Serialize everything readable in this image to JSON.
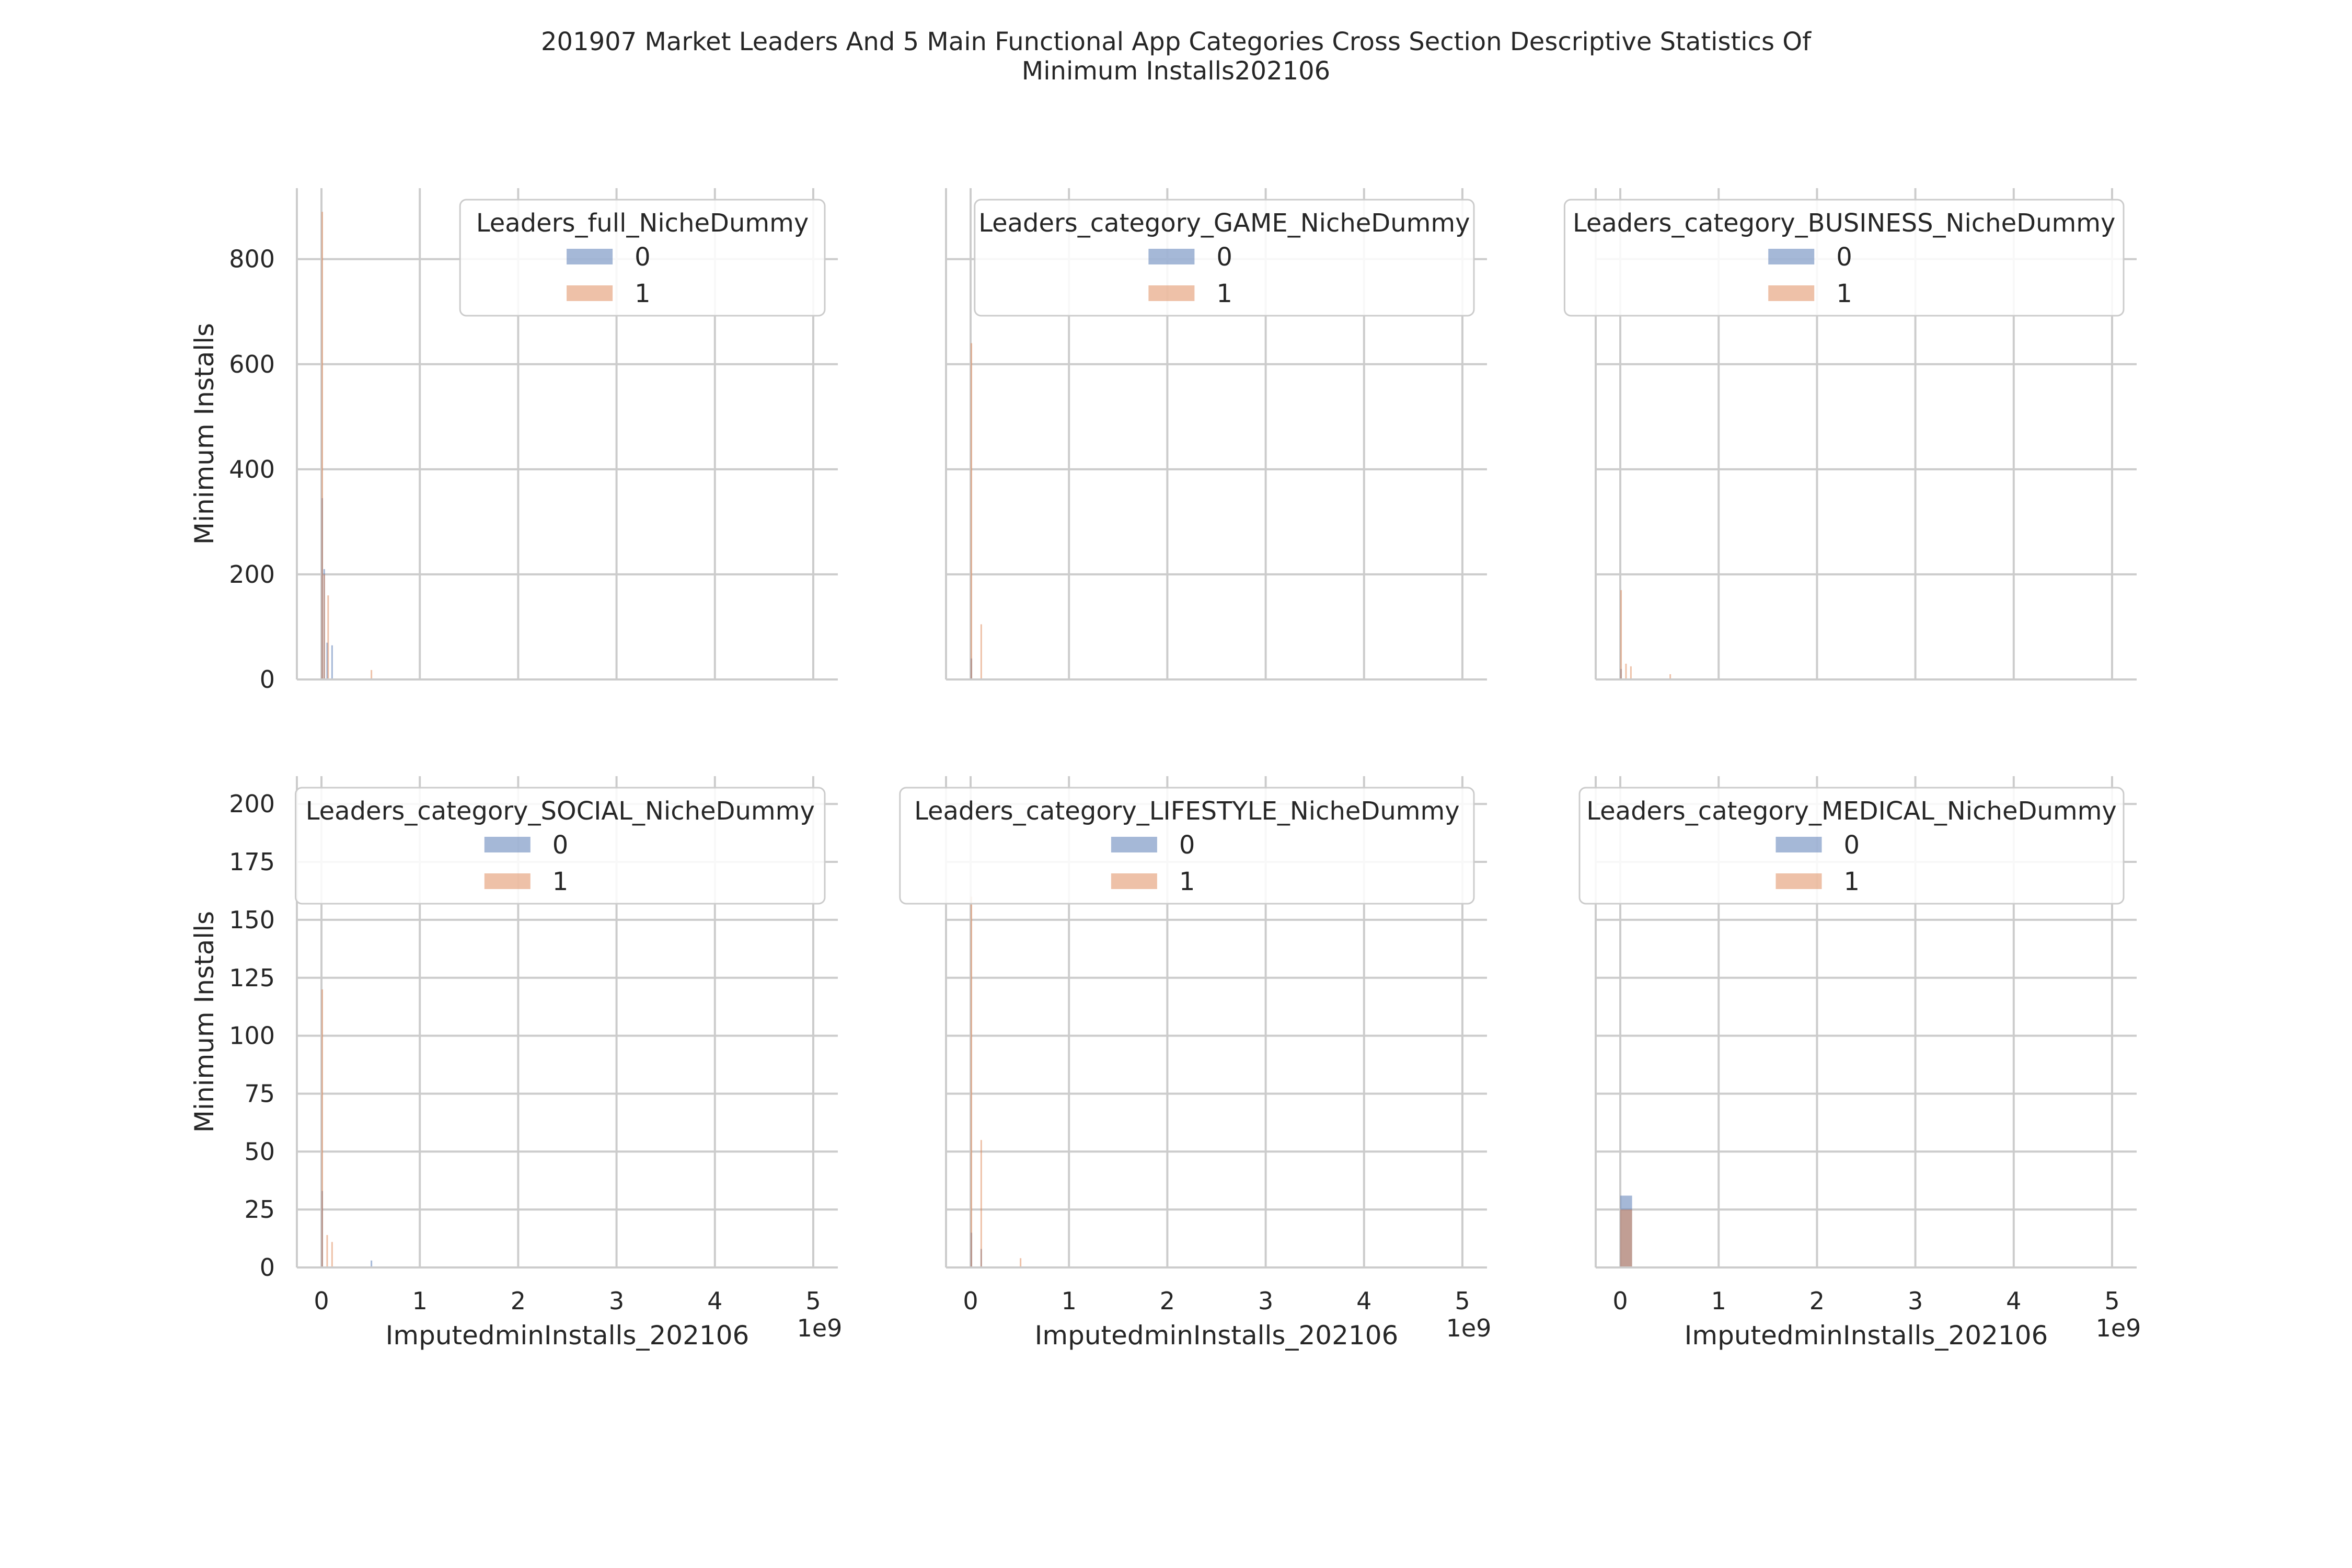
{
  "figure": {
    "title_line1": "201907 Market Leaders And 5 Main Functional App Categories Cross Section Descriptive Statistics Of",
    "title_line2": "Minimum Installs202106"
  },
  "colors": {
    "series_0": "#4c72b0",
    "series_1": "#dd8452",
    "grid": "#cccccc",
    "axis": "#cccccc",
    "text": "#262626"
  },
  "chart_data": [
    {
      "type": "bar",
      "panel": "Leaders_full_NicheDummy",
      "legend_title": "Leaders_full_NicheDummy",
      "legend_position": "top-right",
      "xlabel": "",
      "ylabel": "Minimum Installs",
      "xlim": [
        -250000000.0,
        5250000000.0
      ],
      "ylim": [
        0,
        935
      ],
      "xticks": [
        0,
        1,
        2,
        3,
        4,
        5
      ],
      "yticks": [
        0,
        200,
        400,
        600,
        800
      ],
      "x_offset_label": "",
      "grid": true,
      "series": [
        {
          "name": "0",
          "bars": [
            {
              "x0": 0,
              "x1": 12000000.0,
              "y": 345
            },
            {
              "x0": 20000000.0,
              "x1": 30000000.0,
              "y": 210
            },
            {
              "x0": 50000000.0,
              "x1": 60000000.0,
              "y": 70
            },
            {
              "x0": 100000000.0,
              "x1": 110000000.0,
              "y": 65
            }
          ]
        },
        {
          "name": "1",
          "bars": [
            {
              "x0": 0,
              "x1": 12000000.0,
              "y": 890
            },
            {
              "x0": 20000000.0,
              "x1": 30000000.0,
              "y": 200
            },
            {
              "x0": 60000000.0,
              "x1": 70000000.0,
              "y": 160
            },
            {
              "x0": 500000000.0,
              "x1": 510000000.0,
              "y": 18
            }
          ]
        }
      ]
    },
    {
      "type": "bar",
      "panel": "Leaders_category_GAME_NicheDummy",
      "legend_title": "Leaders_category_GAME_NicheDummy",
      "legend_position": "top-right",
      "xlabel": "",
      "ylabel": "",
      "xlim": [
        -250000000.0,
        5250000000.0
      ],
      "ylim": [
        0,
        935
      ],
      "xticks": [
        0,
        1,
        2,
        3,
        4,
        5
      ],
      "yticks": [
        0,
        200,
        400,
        600,
        800
      ],
      "x_offset_label": "",
      "grid": true,
      "series": [
        {
          "name": "0",
          "bars": [
            {
              "x0": 0,
              "x1": 12000000.0,
              "y": 40
            }
          ]
        },
        {
          "name": "1",
          "bars": [
            {
              "x0": 0,
              "x1": 12000000.0,
              "y": 640
            },
            {
              "x0": 100000000.0,
              "x1": 110000000.0,
              "y": 105
            }
          ]
        }
      ]
    },
    {
      "type": "bar",
      "panel": "Leaders_category_BUSINESS_NicheDummy",
      "legend_title": "Leaders_category_BUSINESS_NicheDummy",
      "legend_position": "top-right",
      "xlabel": "",
      "ylabel": "",
      "xlim": [
        -250000000.0,
        5250000000.0
      ],
      "ylim": [
        0,
        935
      ],
      "xticks": [
        0,
        1,
        2,
        3,
        4,
        5
      ],
      "yticks": [
        0,
        200,
        400,
        600,
        800
      ],
      "x_offset_label": "",
      "grid": true,
      "series": [
        {
          "name": "0",
          "bars": [
            {
              "x0": 0,
              "x1": 12000000.0,
              "y": 20
            }
          ]
        },
        {
          "name": "1",
          "bars": [
            {
              "x0": 0,
              "x1": 12000000.0,
              "y": 170
            },
            {
              "x0": 50000000.0,
              "x1": 60000000.0,
              "y": 30
            },
            {
              "x0": 100000000.0,
              "x1": 110000000.0,
              "y": 25
            },
            {
              "x0": 500000000.0,
              "x1": 510000000.0,
              "y": 10
            }
          ]
        }
      ]
    },
    {
      "type": "bar",
      "panel": "Leaders_category_SOCIAL_NicheDummy",
      "legend_title": "Leaders_category_SOCIAL_NicheDummy",
      "legend_position": "top-right",
      "xlabel": "ImputedminInstalls_202106",
      "ylabel": "Minimum Installs",
      "xlim": [
        -250000000.0,
        5250000000.0
      ],
      "ylim": [
        0,
        212
      ],
      "xticks": [
        0,
        1,
        2,
        3,
        4,
        5
      ],
      "yticks": [
        0,
        25,
        50,
        75,
        100,
        125,
        150,
        175,
        200
      ],
      "x_offset_label": "1e9",
      "grid": true,
      "series": [
        {
          "name": "0",
          "bars": [
            {
              "x0": 0,
              "x1": 12000000.0,
              "y": 33
            },
            {
              "x0": 500000000.0,
              "x1": 510000000.0,
              "y": 3
            }
          ]
        },
        {
          "name": "1",
          "bars": [
            {
              "x0": 0,
              "x1": 12000000.0,
              "y": 120
            },
            {
              "x0": 50000000.0,
              "x1": 60000000.0,
              "y": 14
            },
            {
              "x0": 100000000.0,
              "x1": 110000000.0,
              "y": 11
            }
          ]
        }
      ]
    },
    {
      "type": "bar",
      "panel": "Leaders_category_LIFESTYLE_NicheDummy",
      "legend_title": "Leaders_category_LIFESTYLE_NicheDummy",
      "legend_position": "top-right",
      "xlabel": "ImputedminInstalls_202106",
      "ylabel": "",
      "xlim": [
        -250000000.0,
        5250000000.0
      ],
      "ylim": [
        0,
        212
      ],
      "xticks": [
        0,
        1,
        2,
        3,
        4,
        5
      ],
      "yticks": [
        0,
        25,
        50,
        75,
        100,
        125,
        150,
        175,
        200
      ],
      "x_offset_label": "1e9",
      "grid": true,
      "series": [
        {
          "name": "0",
          "bars": [
            {
              "x0": 0,
              "x1": 12000000.0,
              "y": 15
            },
            {
              "x0": 100000000.0,
              "x1": 110000000.0,
              "y": 8
            }
          ]
        },
        {
          "name": "1",
          "bars": [
            {
              "x0": 0,
              "x1": 12000000.0,
              "y": 160
            },
            {
              "x0": 100000000.0,
              "x1": 110000000.0,
              "y": 55
            },
            {
              "x0": 500000000.0,
              "x1": 510000000.0,
              "y": 4
            }
          ]
        }
      ]
    },
    {
      "type": "bar",
      "panel": "Leaders_category_MEDICAL_NicheDummy",
      "legend_title": "Leaders_category_MEDICAL_NicheDummy",
      "legend_position": "top-right",
      "xlabel": "ImputedminInstalls_202106",
      "ylabel": "",
      "xlim": [
        -250000000.0,
        5250000000.0
      ],
      "ylim": [
        0,
        212
      ],
      "xticks": [
        0,
        1,
        2,
        3,
        4,
        5
      ],
      "yticks": [
        0,
        25,
        50,
        75,
        100,
        125,
        150,
        175,
        200
      ],
      "x_offset_label": "1e9",
      "grid": true,
      "series": [
        {
          "name": "0",
          "bars": [
            {
              "x0": 0,
              "x1": 120000000.0,
              "y": 31
            }
          ]
        },
        {
          "name": "1",
          "bars": [
            {
              "x0": 0,
              "x1": 120000000.0,
              "y": 25
            }
          ]
        }
      ]
    }
  ]
}
